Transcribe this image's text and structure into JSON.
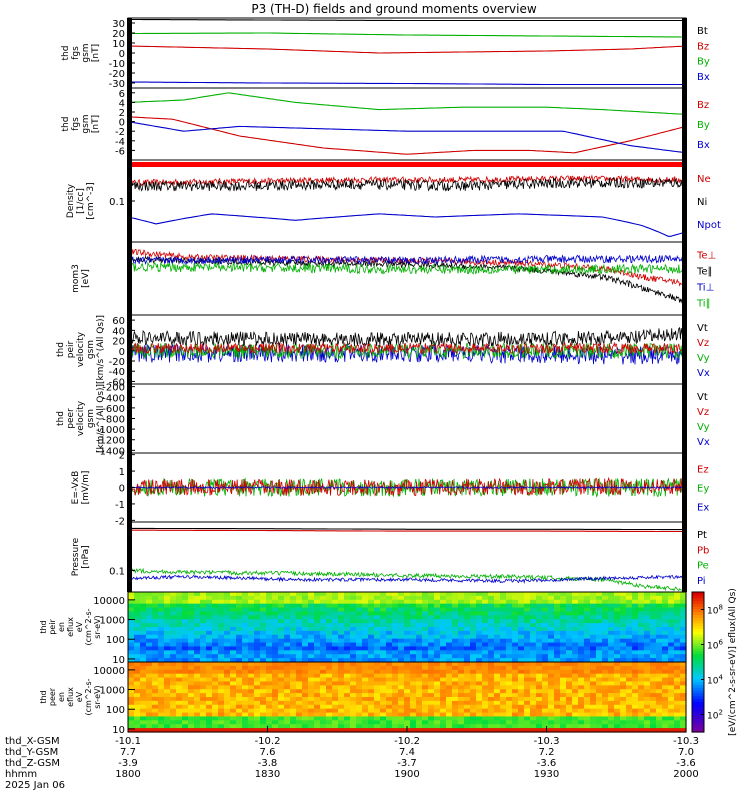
{
  "title": "P3 (TH-D) fields and ground moments overview",
  "chart_data": {
    "type": "line",
    "time_ticks": [
      "1800",
      "1830",
      "1900",
      "1930",
      "2000"
    ],
    "ephemeris": {
      "labels": [
        "thd_X-GSM",
        "thd_Y-GSM",
        "thd_Z-GSM",
        "hhmm",
        "2025 Jan 06"
      ],
      "rows": [
        [
          "-10.1",
          "-10.2",
          "-10.2",
          "-10.3",
          "-10.3"
        ],
        [
          "7.7",
          "7.6",
          "7.4",
          "7.2",
          "7.0"
        ],
        [
          "-3.9",
          "-3.8",
          "-3.7",
          "-3.6",
          "-3.6"
        ]
      ]
    },
    "panels": [
      {
        "ylabel": [
          "thd",
          "fgs",
          "gsm",
          "[nT]"
        ],
        "ylim": [
          -35,
          35
        ],
        "ticks": [
          "30",
          "20",
          "10",
          "0",
          "-10",
          "-20",
          "-30"
        ],
        "tick_values": [
          30,
          20,
          10,
          0,
          -10,
          -20,
          -30
        ],
        "legend": [
          "Bt",
          "Bz",
          "By",
          "Bx"
        ],
        "legend_colors": [
          "#000000",
          "#d00000",
          "#00b000",
          "#0000cc"
        ],
        "series": [
          {
            "name": "Bt",
            "color": "#000000",
            "x": [
              0,
              0.25,
              0.5,
              0.75,
              1
            ],
            "y": [
              33.5,
              33,
              32.5,
              32.5,
              32.5
            ]
          },
          {
            "name": "Bz",
            "color": "#d00000",
            "x": [
              0,
              0.25,
              0.45,
              0.75,
              0.9,
              1
            ],
            "y": [
              7,
              4,
              0,
              2,
              4,
              7
            ]
          },
          {
            "name": "By",
            "color": "#00b000",
            "x": [
              0,
              0.25,
              0.5,
              0.75,
              1
            ],
            "y": [
              19.5,
              20,
              18,
              17,
              16
            ]
          },
          {
            "name": "Bx",
            "color": "#0000cc",
            "x": [
              0,
              0.25,
              0.5,
              0.75,
              1
            ],
            "y": [
              -29,
              -30,
              -30.5,
              -31.5,
              -31.5
            ]
          }
        ]
      },
      {
        "ylabel": [
          "thd",
          "fgs",
          "gsm",
          "[nT]"
        ],
        "ylim": [
          -8,
          7
        ],
        "ticks": [
          "6",
          "4",
          "2",
          "0",
          "-2",
          "-4",
          "-6"
        ],
        "tick_values": [
          6,
          4,
          2,
          0,
          -2,
          -4,
          -6
        ],
        "legend": [
          "Bz",
          "By",
          "Bx"
        ],
        "legend_colors": [
          "#d00000",
          "#00b000",
          "#0000cc"
        ],
        "series": [
          {
            "name": "Bz",
            "color": "#d00000",
            "x": [
              0,
              0.08,
              0.2,
              0.35,
              0.5,
              0.62,
              0.72,
              0.8,
              0.9,
              1
            ],
            "y": [
              1,
              0.5,
              -3,
              -5.5,
              -6.8,
              -6,
              -6,
              -6.5,
              -4,
              -1
            ]
          },
          {
            "name": "By",
            "color": "#00b000",
            "x": [
              0,
              0.1,
              0.18,
              0.3,
              0.45,
              0.6,
              0.75,
              0.85,
              1
            ],
            "y": [
              4,
              4.5,
              6,
              4,
              2.5,
              3,
              3,
              2.5,
              1.5
            ]
          },
          {
            "name": "Bx",
            "color": "#0000cc",
            "x": [
              0,
              0.1,
              0.2,
              0.35,
              0.5,
              0.65,
              0.78,
              0.9,
              1
            ],
            "y": [
              0,
              -2,
              -1,
              -1.5,
              -2,
              -2,
              -2,
              -5,
              -6.5
            ]
          }
        ]
      },
      {
        "ylabel": [
          "Density",
          "[1/cc]",
          "[cm^-3]"
        ],
        "ylim": [
          0.04,
          0.25
        ],
        "log": true,
        "ticks": [
          "0.1"
        ],
        "tick_values": [
          0.1
        ],
        "legend": [
          "Ne",
          "Ni",
          "Npot"
        ],
        "legend_colors": [
          "#d00000",
          "#000000",
          "#0000cc"
        ],
        "series": [
          {
            "name": "Ne",
            "color": "#d00000",
            "x": [
              0,
              0.2,
              0.4,
              0.6,
              0.8,
              1
            ],
            "y": [
              0.15,
              0.155,
              0.16,
              0.16,
              0.165,
              0.16
            ],
            "noise": 0.03
          },
          {
            "name": "Ni",
            "color": "#000000",
            "x": [
              0,
              0.2,
              0.4,
              0.6,
              0.8,
              1
            ],
            "y": [
              0.14,
              0.14,
              0.145,
              0.14,
              0.15,
              0.15
            ],
            "noise": 0.05
          },
          {
            "name": "Npot",
            "color": "#0000cc",
            "x": [
              0,
              0.05,
              0.15,
              0.3,
              0.45,
              0.55,
              0.7,
              0.85,
              0.92,
              0.97,
              1
            ],
            "y": [
              0.07,
              0.06,
              0.075,
              0.065,
              0.075,
              0.07,
              0.075,
              0.07,
              0.058,
              0.045,
              0.05
            ]
          }
        ]
      },
      {
        "ylabel": [
          "mom3",
          "[eV]"
        ],
        "ylim": [
          30,
          2500
        ],
        "log": true,
        "ticks": [],
        "tick_values": [],
        "legend": [
          "Te⊥",
          "Te∥",
          "Ti⊥",
          "Ti∥"
        ],
        "legend_colors": [
          "#d00000",
          "#000000",
          "#0000cc",
          "#00b000"
        ],
        "series": [
          {
            "name": "Te⊥",
            "color": "#d00000",
            "x": [
              0,
              0.1,
              0.3,
              0.5,
              0.7,
              0.85,
              0.92,
              1
            ],
            "y": [
              1400,
              1000,
              900,
              800,
              700,
              500,
              300,
              200
            ],
            "noise": 0.08
          },
          {
            "name": "Te∥",
            "color": "#000000",
            "x": [
              0,
              0.1,
              0.3,
              0.5,
              0.7,
              0.85,
              0.92,
              1
            ],
            "y": [
              900,
              800,
              700,
              650,
              500,
              300,
              150,
              60
            ],
            "noise": 0.08
          },
          {
            "name": "Ti⊥",
            "color": "#0000cc",
            "x": [
              0,
              0.25,
              0.5,
              0.75,
              1
            ],
            "y": [
              800,
              850,
              820,
              880,
              900
            ],
            "noise": 0.1
          },
          {
            "name": "Ti∥",
            "color": "#00b000",
            "x": [
              0,
              0.25,
              0.5,
              0.75,
              1
            ],
            "y": [
              550,
              520,
              480,
              470,
              500
            ],
            "noise": 0.12
          }
        ]
      },
      {
        "ylabel": [
          "thd",
          "peir",
          "velocity",
          "gsm",
          "[km/s^(All Qs)]"
        ],
        "ylim": [
          -65,
          70
        ],
        "ticks": [
          "60",
          "40",
          "20",
          "0",
          "-20",
          "-40",
          "-60"
        ],
        "tick_values": [
          60,
          40,
          20,
          0,
          -20,
          -40,
          -60
        ],
        "legend": [
          "Vt",
          "Vz",
          "Vy",
          "Vx"
        ],
        "legend_colors": [
          "#000000",
          "#d00000",
          "#00b000",
          "#0000cc"
        ],
        "series": [
          {
            "name": "Vx",
            "color": "#0000cc",
            "x": [
              0,
              0.5,
              1
            ],
            "y": [
              -5,
              -5,
              -10
            ],
            "noise": 18
          },
          {
            "name": "Vy",
            "color": "#00b000",
            "x": [
              0,
              0.5,
              1
            ],
            "y": [
              0,
              0,
              0
            ],
            "noise": 15
          },
          {
            "name": "Vt",
            "color": "#000000",
            "x": [
              0,
              0.5,
              0.9,
              1
            ],
            "y": [
              25,
              22,
              25,
              35
            ],
            "noise": 14
          },
          {
            "name": "Vz",
            "color": "#d00000",
            "x": [
              0,
              0.5,
              1
            ],
            "y": [
              5,
              5,
              5
            ],
            "noise": 10
          }
        ]
      },
      {
        "ylabel": [
          "thd",
          "peer",
          "velocity",
          "gsm",
          "[km/s^(All Qs)]"
        ],
        "ylim": [
          -1450,
          -150
        ],
        "ticks": [
          "-200",
          "-400",
          "-600",
          "-800",
          "-1000",
          "-1200",
          "-1400"
        ],
        "tick_values": [
          -200,
          -400,
          -600,
          -800,
          -1000,
          -1200,
          -1400
        ],
        "legend": [
          "Vt",
          "Vz",
          "Vy",
          "Vx"
        ],
        "legend_colors": [
          "#000000",
          "#d00000",
          "#00b000",
          "#0000cc"
        ],
        "series": []
      },
      {
        "ylabel": [
          "E=-VxB",
          "[mV/m]"
        ],
        "ylim": [
          -2.1,
          2.1
        ],
        "ticks": [
          "2",
          "1",
          "0",
          "-1",
          "-2"
        ],
        "tick_values": [
          2,
          1,
          0,
          -1,
          -2
        ],
        "legend": [
          "Ez",
          "Ey",
          "Ex"
        ],
        "legend_colors": [
          "#d00000",
          "#00b000",
          "#0000cc"
        ],
        "series": [
          {
            "name": "Ey",
            "color": "#00b000",
            "x": [
              0,
              0.5,
              1
            ],
            "y": [
              0,
              0,
              0
            ],
            "noise": 0.55
          },
          {
            "name": "Ez",
            "color": "#d00000",
            "x": [
              0,
              0.5,
              1
            ],
            "y": [
              0,
              0,
              0.1
            ],
            "noise": 0.5
          },
          {
            "name": "Ex",
            "color": "#0000cc",
            "x": [
              0,
              0.5,
              1
            ],
            "y": [
              0,
              0,
              0
            ],
            "noise": 0.05
          }
        ]
      },
      {
        "ylabel": [
          "Pressure",
          "[nPa]"
        ],
        "ylim": [
          0.03,
          1.5
        ],
        "log": true,
        "ticks": [
          "0.1"
        ],
        "tick_values": [
          0.1
        ],
        "legend": [
          "Pt",
          "Pb",
          "Pe",
          "Pi"
        ],
        "legend_colors": [
          "#000000",
          "#d00000",
          "#00b000",
          "#0000cc"
        ],
        "series": [
          {
            "name": "Pt",
            "color": "#000000",
            "x": [
              0,
              0.25,
              0.5,
              0.75,
              1
            ],
            "y": [
              1.05,
              1.03,
              1.0,
              1.0,
              0.98
            ]
          },
          {
            "name": "Pb",
            "color": "#d00000",
            "x": [
              0,
              0.25,
              0.5,
              0.75,
              1
            ],
            "y": [
              0.95,
              0.93,
              0.9,
              0.9,
              0.88
            ]
          },
          {
            "name": "Pe",
            "color": "#00b000",
            "x": [
              0,
              0.1,
              0.3,
              0.5,
              0.7,
              0.85,
              0.93,
              1
            ],
            "y": [
              0.1,
              0.09,
              0.085,
              0.075,
              0.07,
              0.06,
              0.04,
              0.035
            ],
            "noise": 0.05
          },
          {
            "name": "Pi",
            "color": "#0000cc",
            "x": [
              0,
              0.1,
              0.3,
              0.5,
              0.7,
              0.85,
              1
            ],
            "y": [
              0.065,
              0.07,
              0.06,
              0.06,
              0.055,
              0.065,
              0.07
            ],
            "noise": 0.04
          }
        ]
      }
    ],
    "spectrograms": [
      {
        "type": "heatmap",
        "ylabel": [
          "thd",
          "peir",
          "en",
          "eflux",
          "eV",
          "(cm^2-s-",
          "sr-eV)"
        ],
        "ticks": [
          "10000",
          "1000",
          "100",
          "10"
        ],
        "tick_values": [
          10000,
          1000,
          100,
          10
        ],
        "ylim": [
          7,
          25000
        ]
      },
      {
        "type": "heatmap",
        "ylabel": [
          "thd",
          "peer",
          "en",
          "eflux",
          "eV",
          "(cm^2-s-",
          "sr-eV)"
        ],
        "ticks": [
          "10000",
          "1000",
          "100",
          "10"
        ],
        "tick_values": [
          10000,
          1000,
          100,
          10
        ],
        "ylim": [
          7,
          25000
        ]
      }
    ],
    "colorbar": {
      "ticks": [
        "10^8",
        "10^6",
        "10^4",
        "10^2"
      ],
      "tick_values": [
        8,
        6,
        4,
        2
      ],
      "range": [
        1,
        9
      ],
      "label": "[eV/(cm^2-s-sr-eV)] eflux(All Qs)"
    }
  }
}
